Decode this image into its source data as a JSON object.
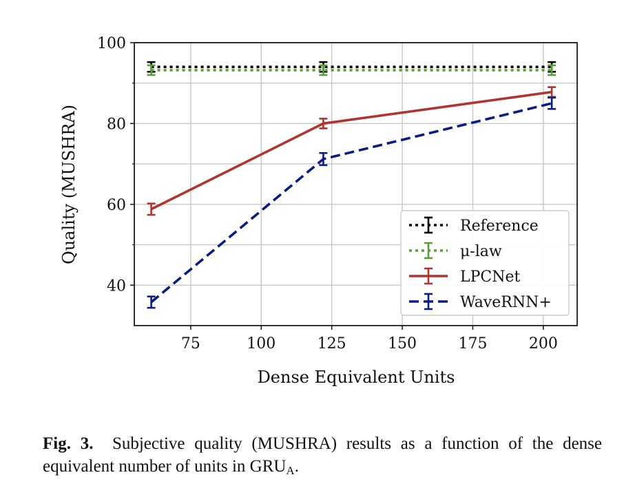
{
  "chart_data": {
    "type": "line",
    "xlabel": "Dense Equivalent Units",
    "ylabel": "Quality (MUSHRA)",
    "xlim": [
      55,
      212
    ],
    "ylim": [
      30,
      100
    ],
    "xticks": [
      75,
      100,
      125,
      150,
      175,
      200
    ],
    "yticks": [
      40,
      60,
      80,
      100
    ],
    "yticks_minor": [
      50,
      70,
      90
    ],
    "grid": true,
    "legend_position": "lower-right",
    "series": [
      {
        "name": "Reference",
        "color": "#000000",
        "dash": "dotted",
        "x": [
          61,
          122,
          203
        ],
        "y": [
          94.0,
          94.0,
          94.0
        ],
        "err": [
          1.2,
          1.2,
          1.2
        ]
      },
      {
        "name": "μ-law",
        "color": "#5a9e3a",
        "dash": "dotted",
        "x": [
          61,
          122,
          203
        ],
        "y": [
          93.2,
          93.2,
          93.2
        ],
        "err": [
          1.2,
          1.2,
          1.2
        ]
      },
      {
        "name": "LPCNet",
        "color": "#b03530",
        "dash": "solid",
        "x": [
          61,
          122,
          203
        ],
        "y": [
          58.8,
          80.0,
          87.8
        ],
        "err": [
          1.4,
          1.2,
          1.2
        ]
      },
      {
        "name": "WaveRNN+",
        "color": "#0c1d82",
        "dash": "dashed",
        "x": [
          61,
          122,
          203
        ],
        "y": [
          35.8,
          71.2,
          85.0
        ],
        "err": [
          1.4,
          1.5,
          1.4
        ]
      }
    ]
  },
  "caption": {
    "label": "Fig. 3",
    "text": "Subjective quality (MUSHRA) results as a function of the dense equivalent number of units in GRU",
    "subscript": "A",
    "end": "."
  }
}
